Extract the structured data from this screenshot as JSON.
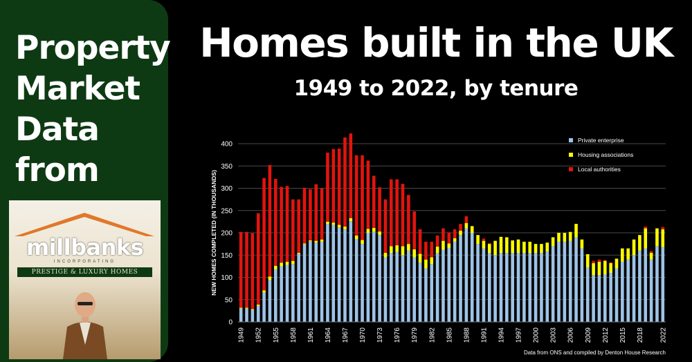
{
  "sidebar": {
    "title_lines": [
      "Property",
      "Market",
      "Data",
      "from"
    ],
    "brand": {
      "name": "millbanks",
      "incorporating": "INCORPORATING",
      "tagline": "PRESTIGE & LUXURY HOMES"
    }
  },
  "header": {
    "title": "Homes built in the UK",
    "subtitle": "1949 to 2022, by tenure"
  },
  "source": "Data from ONS and compiled by Denton House Research",
  "colors": {
    "private": "#9dc3e6",
    "housing": "#ffff00",
    "local": "#e2140e",
    "background": "#000000",
    "sidebar": "#0e3a13"
  },
  "chart_data": {
    "type": "bar",
    "stacked": true,
    "ylabel": "NEW HOMES COMPLETED (IN THOUSANDS)",
    "xlabel": "",
    "ylim": [
      0,
      400
    ],
    "yticks": [
      0,
      50,
      100,
      150,
      200,
      250,
      300,
      350,
      400
    ],
    "legend_position": "top-right",
    "categories": [
      1949,
      1950,
      1951,
      1952,
      1953,
      1954,
      1955,
      1956,
      1957,
      1958,
      1959,
      1960,
      1961,
      1962,
      1963,
      1964,
      1965,
      1966,
      1967,
      1968,
      1969,
      1970,
      1971,
      1972,
      1973,
      1974,
      1975,
      1976,
      1977,
      1978,
      1979,
      1980,
      1981,
      1982,
      1983,
      1984,
      1985,
      1986,
      1987,
      1988,
      1989,
      1990,
      1991,
      1992,
      1993,
      1994,
      1995,
      1996,
      1997,
      1998,
      1999,
      2000,
      2001,
      2002,
      2003,
      2004,
      2005,
      2006,
      2007,
      2008,
      2009,
      2010,
      2011,
      2012,
      2013,
      2014,
      2015,
      2016,
      2017,
      2018,
      2019,
      2020,
      2021,
      2022
    ],
    "tick_labels": [
      "1949",
      "1952",
      "1955",
      "1958",
      "1961",
      "1964",
      "1967",
      "1970",
      "1973",
      "1976",
      "1979",
      "1982",
      "1985",
      "1988",
      "1991",
      "1994",
      "1997",
      "2000",
      "2003",
      "2006",
      "2009",
      "2012",
      "2015",
      "2018",
      "2022"
    ],
    "series": [
      {
        "name": "Private enterprise",
        "values": [
          30,
          30,
          27,
          36,
          66,
          94,
          118,
          125,
          128,
          130,
          153,
          174,
          181,
          178,
          180,
          220,
          218,
          212,
          208,
          226,
          186,
          175,
          200,
          202,
          195,
          145,
          155,
          157,
          150,
          160,
          145,
          133,
          120,
          130,
          154,
          162,
          166,
          180,
          195,
          210,
          200,
          175,
          165,
          155,
          150,
          155,
          155,
          155,
          155,
          155,
          155,
          155,
          155,
          158,
          170,
          180,
          180,
          182,
          190,
          165,
          122,
          105,
          105,
          107,
          110,
          120,
          135,
          140,
          150,
          160,
          165,
          140,
          170,
          168
        ]
      },
      {
        "name": "Housing associations",
        "values": [
          2,
          2,
          2,
          3,
          5,
          8,
          8,
          8,
          7,
          7,
          2,
          2,
          2,
          4,
          5,
          5,
          5,
          6,
          6,
          7,
          8,
          9,
          9,
          9,
          8,
          10,
          15,
          15,
          20,
          15,
          18,
          20,
          20,
          15,
          15,
          20,
          10,
          8,
          10,
          12,
          15,
          20,
          17,
          20,
          32,
          36,
          35,
          28,
          30,
          25,
          25,
          20,
          20,
          20,
          20,
          20,
          20,
          20,
          30,
          20,
          30,
          27,
          30,
          30,
          22,
          22,
          30,
          25,
          35,
          35,
          45,
          15,
          40,
          40
        ]
      },
      {
        "name": "Local authorities",
        "values": [
          170,
          170,
          170,
          205,
          252,
          250,
          195,
          170,
          170,
          138,
          120,
          125,
          115,
          127,
          115,
          155,
          165,
          171,
          200,
          190,
          180,
          190,
          153,
          117,
          99,
          120,
          150,
          148,
          140,
          110,
          85,
          55,
          40,
          35,
          25,
          28,
          25,
          20,
          15,
          15,
          0,
          0,
          5,
          2,
          0,
          0,
          0,
          0,
          0,
          0,
          0,
          0,
          0,
          0,
          0,
          0,
          0,
          0,
          0,
          0,
          0,
          5,
          5,
          2,
          2,
          0,
          0,
          0,
          0,
          0,
          4,
          4,
          0,
          5
        ]
      }
    ]
  }
}
